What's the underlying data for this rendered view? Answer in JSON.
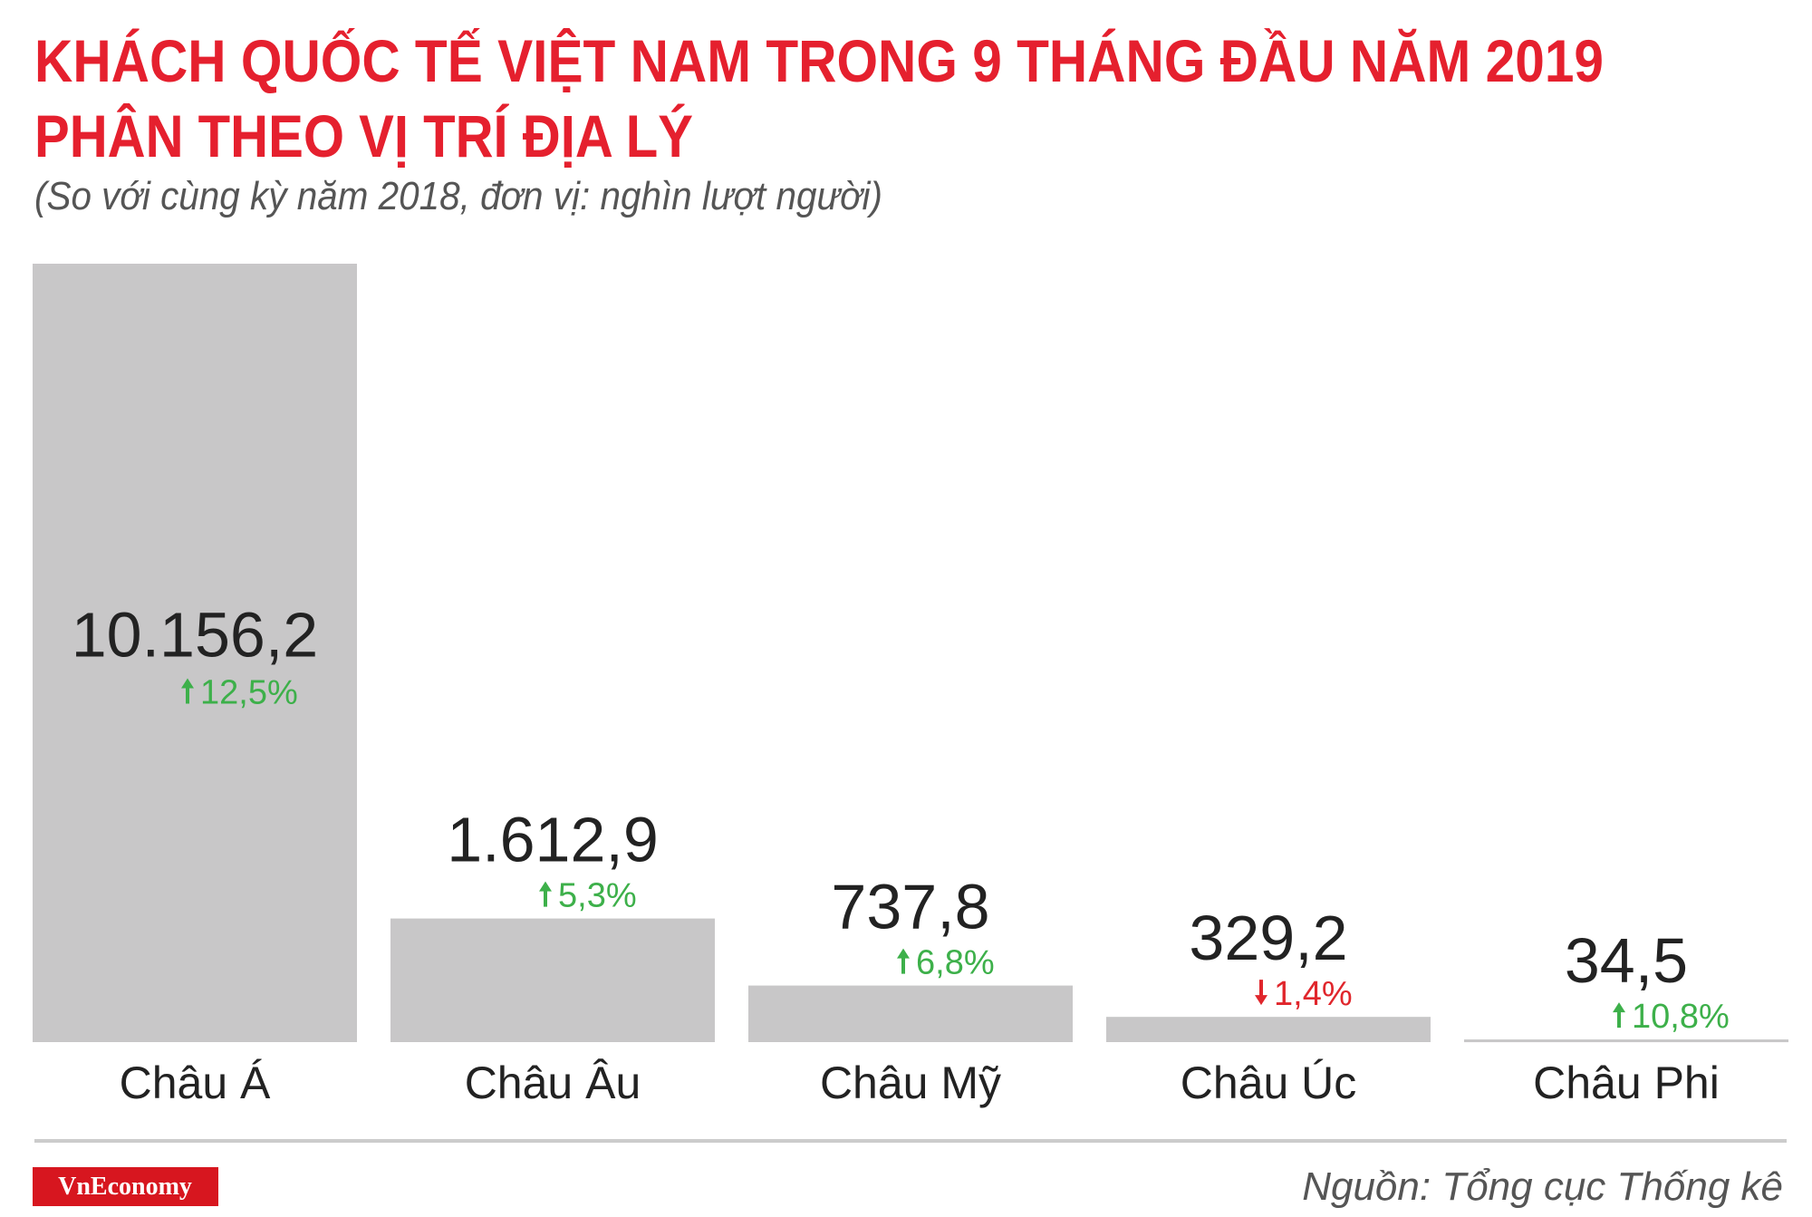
{
  "chart_data": {
    "type": "bar",
    "title": [
      "KHÁCH QUỐC TẾ VIỆT NAM TRONG 9 THÁNG ĐẦU NĂM 2019",
      "PHÂN THEO VỊ TRÍ ĐỊA LÝ"
    ],
    "subtitle": "(So với cùng kỳ năm 2018, đơn vị: nghìn lượt người)",
    "categories": [
      "Châu Á",
      "Châu Âu",
      "Châu Mỹ",
      "Châu Úc",
      "Châu Phi"
    ],
    "values": [
      10156.2,
      1612.9,
      737.8,
      329.2,
      34.5
    ],
    "value_labels": [
      "10.156,2",
      "1.612,9",
      "737,8",
      "329,2",
      "34,5"
    ],
    "changes": [
      12.5,
      5.3,
      6.8,
      -1.4,
      10.8
    ],
    "change_labels": [
      "12,5%",
      "5,3%",
      "6,8%",
      "1,4%",
      "10,8%"
    ],
    "color": "#c8c7c8",
    "up_color": "#3db04a",
    "down_color": "#e0262c",
    "source": "Nguồn: Tổng cục Thống kê",
    "logo": "VnEconomy"
  }
}
